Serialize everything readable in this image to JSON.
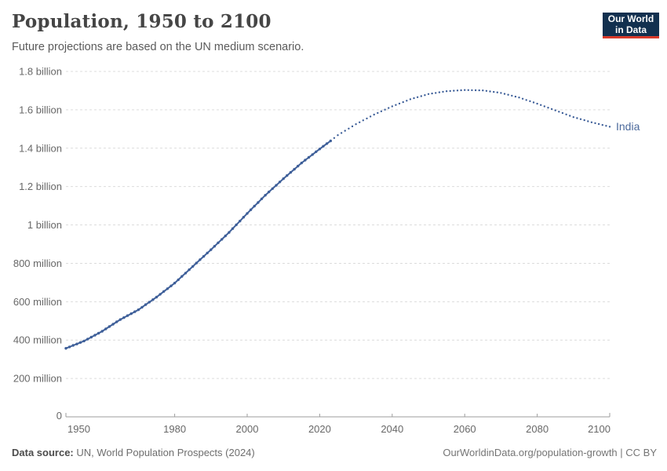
{
  "logo": {
    "line1": "Our World",
    "line2": "in Data"
  },
  "footer": {
    "source_label": "Data source:",
    "source_text": " UN, World Population Prospects (2024)",
    "credit": "OurWorldinData.org/population-growth | CC BY"
  },
  "colors": {
    "line": "#3e5f99",
    "entity_label": "#4c6a9c",
    "grid": "#dcdcdc",
    "axis": "#9e9e9e",
    "tick_text": "#686868"
  },
  "chart_data": {
    "type": "line",
    "title": "Population, 1950 to 2100",
    "subtitle": "Future projections are based on the UN medium scenario.",
    "entity": "India",
    "unit": "people (millions)",
    "xlim": [
      1950,
      2100
    ],
    "ylim_millions": [
      0,
      1800
    ],
    "grid": true,
    "legend_position": "end-of-line-label",
    "x_ticks": [
      1950,
      1980,
      2000,
      2020,
      2040,
      2060,
      2080,
      2100
    ],
    "y_ticks": [
      {
        "value": 0,
        "label": "0"
      },
      {
        "value": 200,
        "label": "200 million"
      },
      {
        "value": 400,
        "label": "400 million"
      },
      {
        "value": 600,
        "label": "600 million"
      },
      {
        "value": 800,
        "label": "800 million"
      },
      {
        "value": 1000,
        "label": "1 billion"
      },
      {
        "value": 1200,
        "label": "1.2 billion"
      },
      {
        "value": 1400,
        "label": "1.4 billion"
      },
      {
        "value": 1600,
        "label": "1.6 billion"
      },
      {
        "value": 1800,
        "label": "1.8 billion"
      }
    ],
    "projection_from_year": 2024,
    "series": [
      {
        "name": "India",
        "points_year_millions": [
          [
            1950,
            357
          ],
          [
            1955,
            395
          ],
          [
            1960,
            446
          ],
          [
            1965,
            507
          ],
          [
            1970,
            558
          ],
          [
            1975,
            624
          ],
          [
            1980,
            697
          ],
          [
            1985,
            784
          ],
          [
            1990,
            871
          ],
          [
            1995,
            961
          ],
          [
            2000,
            1060
          ],
          [
            2005,
            1155
          ],
          [
            2010,
            1241
          ],
          [
            2015,
            1323
          ],
          [
            2020,
            1396
          ],
          [
            2023,
            1438
          ],
          [
            2025,
            1468
          ],
          [
            2030,
            1525
          ],
          [
            2035,
            1575
          ],
          [
            2040,
            1618
          ],
          [
            2045,
            1655
          ],
          [
            2050,
            1682
          ],
          [
            2055,
            1697
          ],
          [
            2060,
            1703
          ],
          [
            2065,
            1701
          ],
          [
            2070,
            1688
          ],
          [
            2075,
            1664
          ],
          [
            2080,
            1632
          ],
          [
            2085,
            1597
          ],
          [
            2090,
            1562
          ],
          [
            2095,
            1535
          ],
          [
            2100,
            1512
          ]
        ]
      }
    ]
  }
}
